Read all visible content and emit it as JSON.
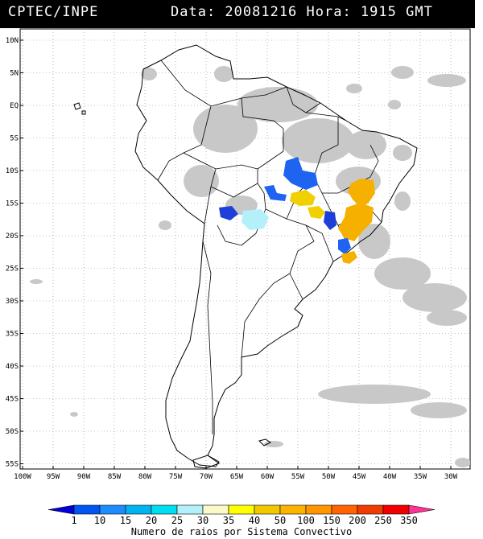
{
  "header": {
    "org": "CPTEC/INPE",
    "datetime": "Data: 20081216 Hora: 1915 GMT"
  },
  "map": {
    "lon_range": [
      -100,
      -27
    ],
    "lat_range": [
      -56,
      13
    ],
    "grid": true,
    "lat_labels": [
      "10N",
      "5N",
      "EQ",
      "5S",
      "10S",
      "15S",
      "20S",
      "25S",
      "30S",
      "35S",
      "40S",
      "45S",
      "50S",
      "55S"
    ],
    "lon_labels": [
      "100W",
      "95W",
      "90W",
      "85W",
      "80W",
      "75W",
      "70W",
      "65W",
      "60W",
      "55W",
      "50W",
      "45W",
      "40W",
      "35W",
      "30W"
    ]
  },
  "colorbar": {
    "labels": [
      "1",
      "10",
      "15",
      "20",
      "25",
      "30",
      "35",
      "40",
      "50",
      "100",
      "150",
      "200",
      "250",
      "350"
    ],
    "colors": [
      "#0000d8",
      "#0055f0",
      "#1e8cff",
      "#00b4f0",
      "#00dcf0",
      "#b4f0fa",
      "#fafac8",
      "#ffff00",
      "#f0c800",
      "#fab400",
      "#ff9600",
      "#ff6400",
      "#f03c00",
      "#f00000",
      "#ff3296"
    ],
    "title": "Numero de raios por Sistema Convectivo"
  },
  "icons": {
    "cloud_color": "#c0c0c0",
    "coastline_color": "#000000"
  }
}
